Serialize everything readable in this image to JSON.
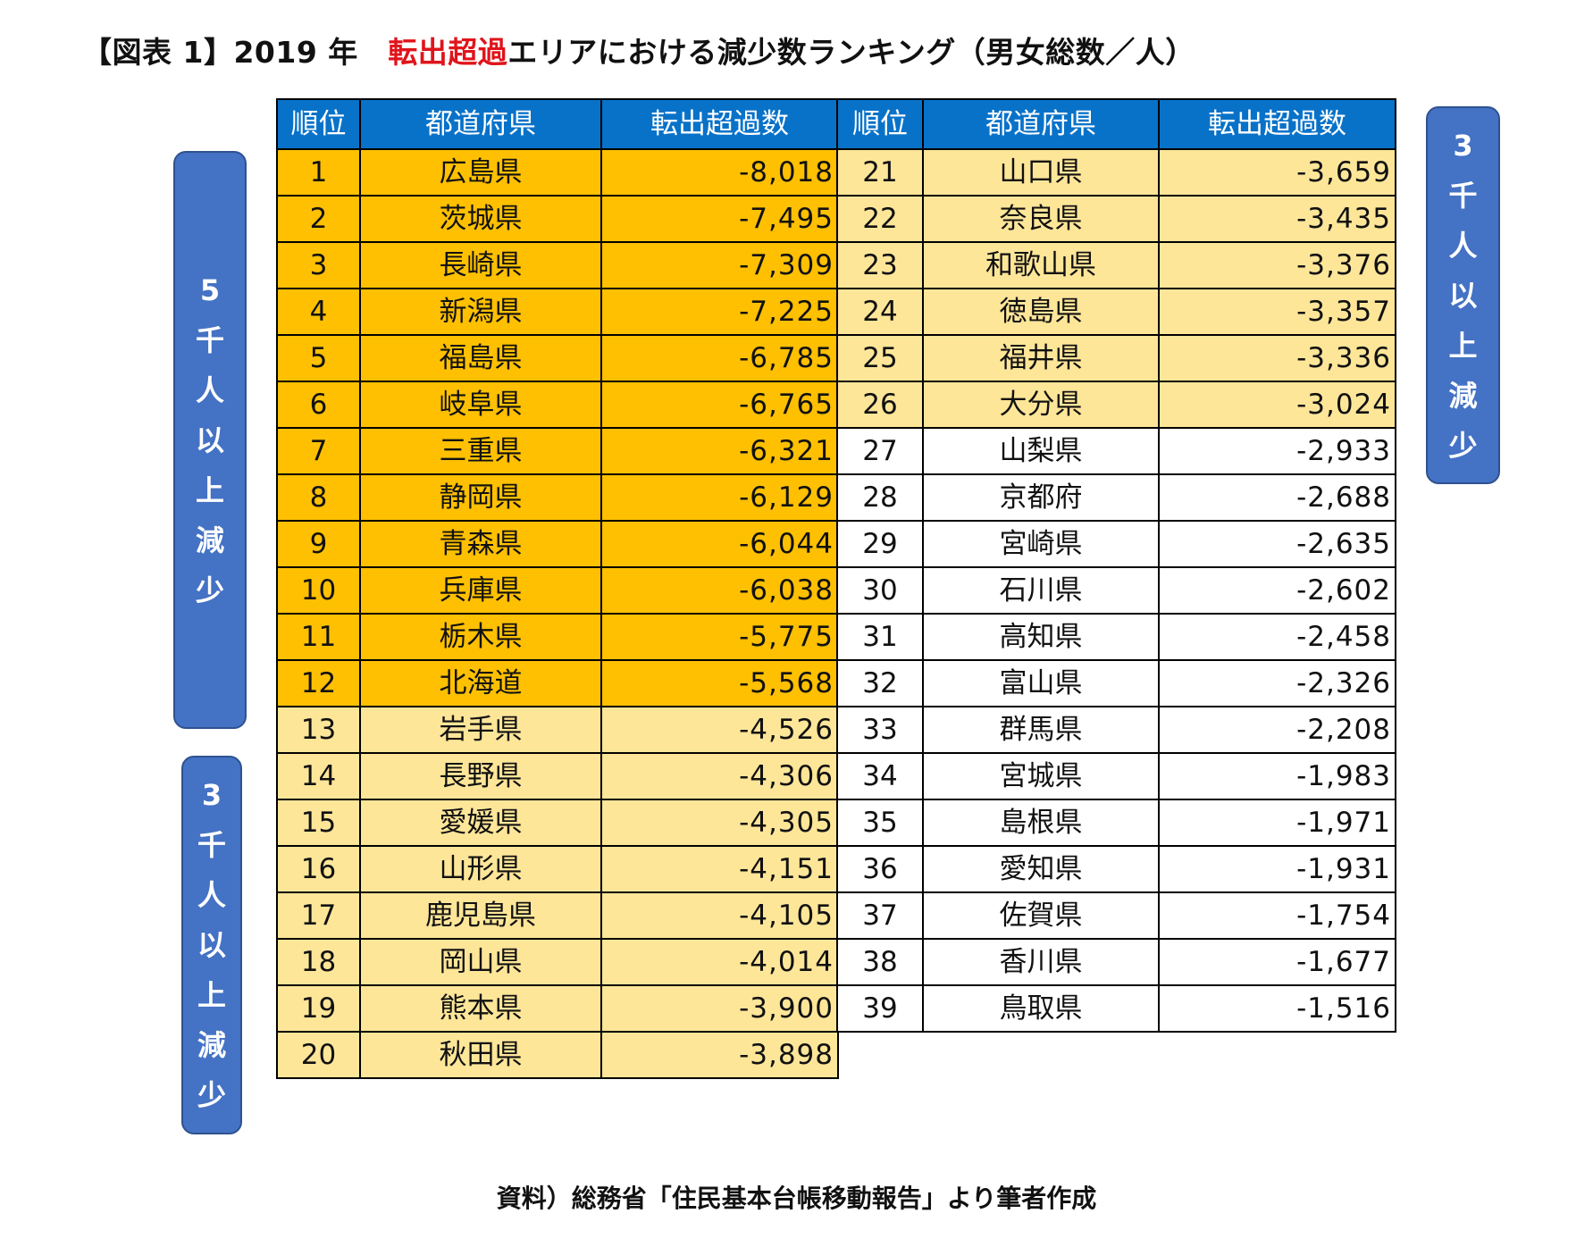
{
  "title": {
    "prefix": "【図表 1】2019 年　",
    "highlight": "転出超過",
    "suffix": "エリアにおける減少数ランキング（男女総数／人）"
  },
  "headers": {
    "rank": "順位",
    "prefecture": "都道府県",
    "excess": "転出超過数"
  },
  "labels": {
    "left_top": "5千人以上減少",
    "left_bottom": "3千人以上減少",
    "right": "3千人以上減少"
  },
  "colors": {
    "header": "#0872c9",
    "tier_5000": "#fec000",
    "tier_3000": "#fee699",
    "label_box": "#4472c4",
    "title_highlight": "#e0141b"
  },
  "left_table": [
    {
      "rank": "1",
      "prefecture": "広島県",
      "value": "-8,018",
      "tier": "hi"
    },
    {
      "rank": "2",
      "prefecture": "茨城県",
      "value": "-7,495",
      "tier": "hi"
    },
    {
      "rank": "3",
      "prefecture": "長崎県",
      "value": "-7,309",
      "tier": "hi"
    },
    {
      "rank": "4",
      "prefecture": "新潟県",
      "value": "-7,225",
      "tier": "hi"
    },
    {
      "rank": "5",
      "prefecture": "福島県",
      "value": "-6,785",
      "tier": "hi"
    },
    {
      "rank": "6",
      "prefecture": "岐阜県",
      "value": "-6,765",
      "tier": "hi"
    },
    {
      "rank": "7",
      "prefecture": "三重県",
      "value": "-6,321",
      "tier": "hi"
    },
    {
      "rank": "8",
      "prefecture": "静岡県",
      "value": "-6,129",
      "tier": "hi"
    },
    {
      "rank": "9",
      "prefecture": "青森県",
      "value": "-6,044",
      "tier": "hi"
    },
    {
      "rank": "10",
      "prefecture": "兵庫県",
      "value": "-6,038",
      "tier": "hi"
    },
    {
      "rank": "11",
      "prefecture": "栃木県",
      "value": "-5,775",
      "tier": "hi"
    },
    {
      "rank": "12",
      "prefecture": "北海道",
      "value": "-5,568",
      "tier": "hi"
    },
    {
      "rank": "13",
      "prefecture": "岩手県",
      "value": "-4,526",
      "tier": "mid"
    },
    {
      "rank": "14",
      "prefecture": "長野県",
      "value": "-4,306",
      "tier": "mid"
    },
    {
      "rank": "15",
      "prefecture": "愛媛県",
      "value": "-4,305",
      "tier": "mid"
    },
    {
      "rank": "16",
      "prefecture": "山形県",
      "value": "-4,151",
      "tier": "mid"
    },
    {
      "rank": "17",
      "prefecture": "鹿児島県",
      "value": "-4,105",
      "tier": "mid"
    },
    {
      "rank": "18",
      "prefecture": "岡山県",
      "value": "-4,014",
      "tier": "mid"
    },
    {
      "rank": "19",
      "prefecture": "熊本県",
      "value": "-3,900",
      "tier": "mid"
    },
    {
      "rank": "20",
      "prefecture": "秋田県",
      "value": "-3,898",
      "tier": "mid"
    }
  ],
  "right_table": [
    {
      "rank": "21",
      "prefecture": "山口県",
      "value": "-3,659",
      "tier": "mid"
    },
    {
      "rank": "22",
      "prefecture": "奈良県",
      "value": "-3,435",
      "tier": "mid"
    },
    {
      "rank": "23",
      "prefecture": "和歌山県",
      "value": "-3,376",
      "tier": "mid"
    },
    {
      "rank": "24",
      "prefecture": "徳島県",
      "value": "-3,357",
      "tier": "mid"
    },
    {
      "rank": "25",
      "prefecture": "福井県",
      "value": "-3,336",
      "tier": "mid"
    },
    {
      "rank": "26",
      "prefecture": "大分県",
      "value": "-3,024",
      "tier": "mid"
    },
    {
      "rank": "27",
      "prefecture": "山梨県",
      "value": "-2,933",
      "tier": "low"
    },
    {
      "rank": "28",
      "prefecture": "京都府",
      "value": "-2,688",
      "tier": "low"
    },
    {
      "rank": "29",
      "prefecture": "宮崎県",
      "value": "-2,635",
      "tier": "low"
    },
    {
      "rank": "30",
      "prefecture": "石川県",
      "value": "-2,602",
      "tier": "low"
    },
    {
      "rank": "31",
      "prefecture": "高知県",
      "value": "-2,458",
      "tier": "low"
    },
    {
      "rank": "32",
      "prefecture": "富山県",
      "value": "-2,326",
      "tier": "low"
    },
    {
      "rank": "33",
      "prefecture": "群馬県",
      "value": "-2,208",
      "tier": "low"
    },
    {
      "rank": "34",
      "prefecture": "宮城県",
      "value": "-1,983",
      "tier": "low"
    },
    {
      "rank": "35",
      "prefecture": "島根県",
      "value": "-1,971",
      "tier": "low"
    },
    {
      "rank": "36",
      "prefecture": "愛知県",
      "value": "-1,931",
      "tier": "low"
    },
    {
      "rank": "37",
      "prefecture": "佐賀県",
      "value": "-1,754",
      "tier": "low"
    },
    {
      "rank": "38",
      "prefecture": "香川県",
      "value": "-1,677",
      "tier": "low"
    },
    {
      "rank": "39",
      "prefecture": "鳥取県",
      "value": "-1,516",
      "tier": "low"
    }
  ],
  "source": "資料）総務省「住民基本台帳移動報告」より筆者作成"
}
